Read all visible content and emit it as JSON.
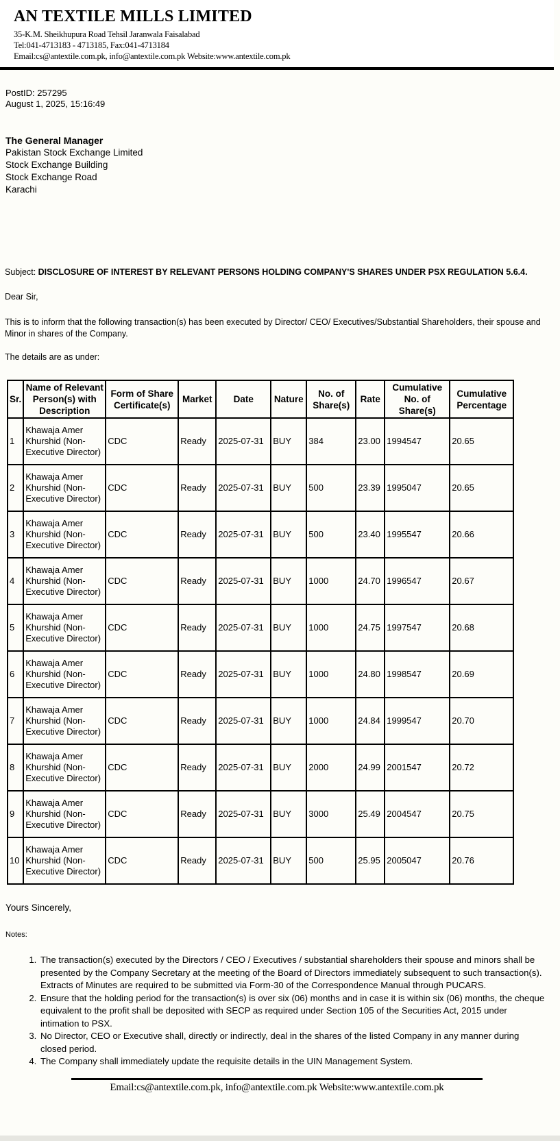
{
  "letterhead": {
    "company_name": "AN TEXTILE MILLS LIMITED",
    "address_line": "35-K.M. Sheikhupura Road Tehsil Jaranwala Faisalabad",
    "phone_line": "Tel:041-4713183 - 4713185,  Fax:041-4713184",
    "contact_line": "Email:cs@antextile.com.pk, info@antextile.com.pk Website:www.antextile.com.pk"
  },
  "meta": {
    "post_id": "PostID: 257295",
    "datetime": "August 1, 2025, 15:16:49"
  },
  "addressee": {
    "title": "The General Manager",
    "lines": [
      "Pakistan Stock Exchange Limited",
      "Stock Exchange Building",
      "Stock Exchange Road",
      "Karachi"
    ]
  },
  "subject": {
    "label": "Subject: ",
    "text": "DISCLOSURE OF INTEREST BY RELEVANT PERSONS HOLDING COMPANY'S SHARES UNDER PSX REGULATION 5.6.4."
  },
  "salutation": "Dear Sir,",
  "body_paragraph": "This is to inform that the following transaction(s) has been executed by Director/ CEO/ Executives/Substantial Shareholders, their spouse and Minor in shares of the Company.",
  "details_intro": "The details are as under:",
  "table": {
    "headers": [
      "Sr.",
      "Name of Relevant Person(s) with Description",
      "Form of Share Certificate(s)",
      "Market",
      "Date",
      "Nature",
      "No. of Share(s)",
      "Rate",
      "Cumulative No. of Share(s)",
      "Cumulative Percentage"
    ],
    "rows": [
      [
        "1",
        "Khawaja Amer Khurshid (Non-Executive Director)",
        "CDC",
        "Ready",
        "2025-07-31",
        "BUY",
        "384",
        "23.00",
        "1994547",
        "20.65"
      ],
      [
        "2",
        "Khawaja Amer Khurshid (Non-Executive Director)",
        "CDC",
        "Ready",
        "2025-07-31",
        "BUY",
        "500",
        "23.39",
        "1995047",
        "20.65"
      ],
      [
        "3",
        "Khawaja Amer Khurshid (Non-Executive Director)",
        "CDC",
        "Ready",
        "2025-07-31",
        "BUY",
        "500",
        "23.40",
        "1995547",
        "20.66"
      ],
      [
        "4",
        "Khawaja Amer Khurshid (Non-Executive Director)",
        "CDC",
        "Ready",
        "2025-07-31",
        "BUY",
        "1000",
        "24.70",
        "1996547",
        "20.67"
      ],
      [
        "5",
        "Khawaja Amer Khurshid (Non-Executive Director)",
        "CDC",
        "Ready",
        "2025-07-31",
        "BUY",
        "1000",
        "24.75",
        "1997547",
        "20.68"
      ],
      [
        "6",
        "Khawaja Amer Khurshid (Non-Executive Director)",
        "CDC",
        "Ready",
        "2025-07-31",
        "BUY",
        "1000",
        "24.80",
        "1998547",
        "20.69"
      ],
      [
        "7",
        "Khawaja Amer Khurshid (Non-Executive Director)",
        "CDC",
        "Ready",
        "2025-07-31",
        "BUY",
        "1000",
        "24.84",
        "1999547",
        "20.70"
      ],
      [
        "8",
        "Khawaja Amer Khurshid (Non-Executive Director)",
        "CDC",
        "Ready",
        "2025-07-31",
        "BUY",
        "2000",
        "24.99",
        "2001547",
        "20.72"
      ],
      [
        "9",
        "Khawaja Amer Khurshid (Non-Executive Director)",
        "CDC",
        "Ready",
        "2025-07-31",
        "BUY",
        "3000",
        "25.49",
        "2004547",
        "20.75"
      ],
      [
        "10",
        "Khawaja Amer Khurshid (Non-Executive Director)",
        "CDC",
        "Ready",
        "2025-07-31",
        "BUY",
        "500",
        "25.95",
        "2005047",
        "20.76"
      ]
    ]
  },
  "closing": "Yours Sincerely,",
  "notes_label": "Notes:",
  "notes": [
    "The transaction(s) executed by the Directors / CEO / Executives / substantial shareholders their spouse and minors shall be presented by the Company Secretary at the meeting of the Board of Directors immediately subsequent to such transaction(s). Extracts of Minutes are required to be submitted via Form-30 of the Correspondence Manual through PUCARS.",
    "Ensure that the holding period for the transaction(s) is over six (06) months and in case it is within six (06) months, the cheque equivalent to the profit shall be deposited with SECP as required under Section 105 of the Securities Act, 2015 under intimation to PSX.",
    "No Director, CEO or Executive shall, directly or indirectly, deal in the shares of the listed Company in any manner during closed period.",
    "The Company shall immediately update the requisite details in the UIN Management System."
  ],
  "footer": {
    "contact_line": "Email:cs@antextile.com.pk, info@antextile.com.pk Website:www.antextile.com.pk"
  }
}
